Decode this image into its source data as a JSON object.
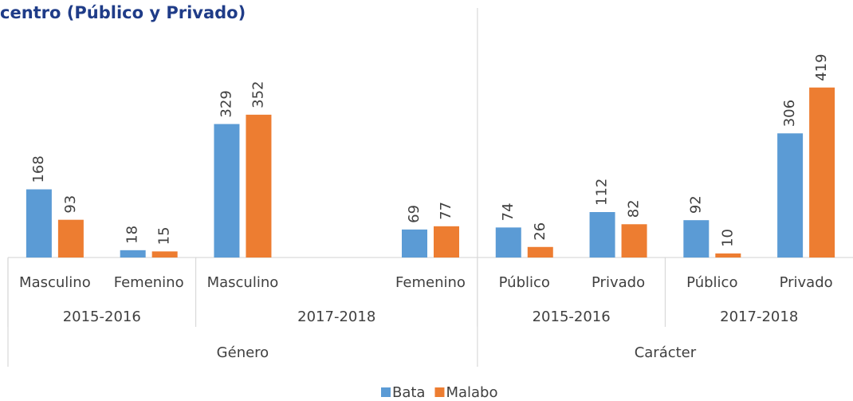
{
  "chart_data": {
    "type": "bar",
    "title": "centro (Público y Privado)",
    "categories": [
      "Masculino",
      "Femenino",
      "Masculino",
      null,
      "Femenino",
      "Público",
      "Privado",
      "Público",
      "Privado"
    ],
    "category_groups": [
      [
        {
          "label": "2015-2016",
          "count": 2
        },
        {
          "label": "2017-2018",
          "count": 3
        },
        {
          "label": "2015-2016",
          "count": 2
        },
        {
          "label": "2017-2018",
          "count": 2
        }
      ],
      [
        {
          "label": "Género",
          "count": 5
        },
        {
          "label": "Carácter",
          "count": 4
        }
      ]
    ],
    "series": [
      {
        "name": "Bata",
        "color": "#5b9bd5",
        "values": [
          168,
          18,
          329,
          null,
          69,
          74,
          112,
          92,
          306
        ]
      },
      {
        "name": "Malabo",
        "color": "#ed7d31",
        "values": [
          93,
          15,
          352,
          null,
          77,
          26,
          82,
          10,
          419
        ]
      }
    ],
    "ylim": [
      0,
      450
    ],
    "legend": "bottom"
  }
}
